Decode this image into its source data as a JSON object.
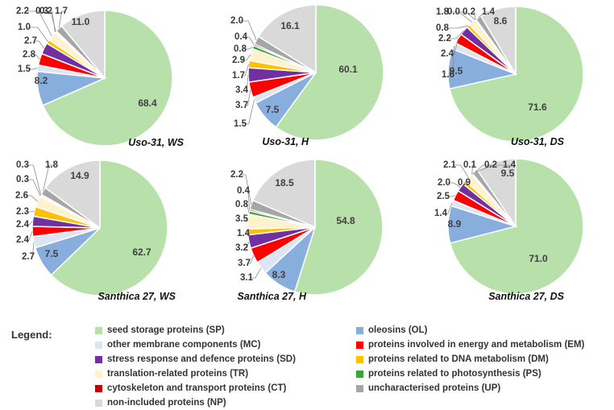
{
  "legend": {
    "heading": "Legend:",
    "items": [
      {
        "label": "seed storage proteins (SP)",
        "color": "#b7e0aa"
      },
      {
        "label": "oleosins (OL)",
        "color": "#88aedd"
      },
      {
        "label": "other membrane components (MC)",
        "color": "#dbe6f2"
      },
      {
        "label": "proteins involved in energy and metabolism (EM)",
        "color": "#ff0000"
      },
      {
        "label": "stress response and defence proteins (SD)",
        "color": "#7030a0"
      },
      {
        "label": "proteins related to DNA metabolism (DM)",
        "color": "#ffc000"
      },
      {
        "label": "translation-related proteins (TR)",
        "color": "#fff2cc"
      },
      {
        "label": "proteins related to photosynthesis (PS)",
        "color": "#3aa33a"
      },
      {
        "label": "cytoskeleton and transport proteins (CT)",
        "color": "#c00000"
      },
      {
        "label": "uncharacterised proteins (UP)",
        "color": "#a6a6a6"
      },
      {
        "label": "non-included proteins (NP)",
        "color": "#d9d9d9"
      }
    ]
  },
  "chart_data": [
    {
      "type": "pie",
      "title": "Uso-31, WS",
      "categories": [
        "SP",
        "OL",
        "MC",
        "EM",
        "SD",
        "DM",
        "TR",
        "PS",
        "CT",
        "UP",
        "NP"
      ],
      "values": [
        68.4,
        8.2,
        1.5,
        2.8,
        2.7,
        1.0,
        2.2,
        0.2,
        0.3,
        1.7,
        11.0
      ],
      "labels": [
        "68.4",
        "8.2",
        "1.5",
        "2.8",
        "2.7",
        "1.0",
        "2.2",
        "0.2",
        "0.3",
        "1.7",
        "11.0"
      ]
    },
    {
      "type": "pie",
      "title": "Uso-31, H",
      "categories": [
        "SP",
        "OL",
        "MC",
        "EM",
        "SD",
        "DM",
        "TR",
        "PS",
        "CT",
        "UP",
        "NP"
      ],
      "values": [
        60.1,
        7.5,
        1.5,
        3.7,
        3.4,
        1.7,
        2.9,
        0.8,
        0.4,
        2.0,
        16.1
      ],
      "labels": [
        "60.1",
        "7.5",
        "1.5",
        "3.7",
        "3.4",
        "1.7",
        "2.9",
        "0.8",
        "0.4",
        "2.0",
        "16.1"
      ]
    },
    {
      "type": "pie",
      "title": "Uso-31, DS",
      "categories": [
        "SP",
        "OL",
        "MC",
        "EM",
        "SD",
        "DM",
        "TR",
        "PS",
        "CT",
        "UP",
        "NP"
      ],
      "values": [
        71.6,
        9.5,
        1.6,
        2.4,
        2.2,
        0.8,
        1.8,
        0.0,
        0.2,
        1.4,
        8.6
      ],
      "labels": [
        "71.6",
        "9.5",
        "1.6",
        "2.4",
        "2.2",
        "0.8",
        "1.8",
        "0.0",
        "0.2",
        "1.4",
        "8.6"
      ]
    },
    {
      "type": "pie",
      "title": "Santhica 27, WS",
      "categories": [
        "SP",
        "OL",
        "MC",
        "EM",
        "SD",
        "DM",
        "TR",
        "PS",
        "CT",
        "UP",
        "NP"
      ],
      "values": [
        62.7,
        7.5,
        2.7,
        2.4,
        2.4,
        2.3,
        2.6,
        0.3,
        0.3,
        1.8,
        14.9
      ],
      "labels": [
        "62.7",
        "7.5",
        "2.7",
        "2.4",
        "2.4",
        "2.3",
        "2.6",
        "0.3",
        "0.3",
        "1.8",
        "14.9"
      ]
    },
    {
      "type": "pie",
      "title": "Santhica 27, H",
      "categories": [
        "SP",
        "OL",
        "MC",
        "EM",
        "SD",
        "DM",
        "TR",
        "PS",
        "CT",
        "UP",
        "NP"
      ],
      "values": [
        54.8,
        8.3,
        3.1,
        3.7,
        3.2,
        1.4,
        3.5,
        0.8,
        0.4,
        2.2,
        18.5
      ],
      "labels": [
        "54.8",
        "8.3",
        "3.1",
        "3.7",
        "3.2",
        "1.4",
        "3.5",
        "0.8",
        "0.4",
        "2.2",
        "18.5"
      ]
    },
    {
      "type": "pie",
      "title": "Santhica 27, DS",
      "categories": [
        "SP",
        "OL",
        "MC",
        "EM",
        "SD",
        "DM",
        "TR",
        "PS",
        "CT",
        "UP",
        "NP"
      ],
      "values": [
        71.0,
        8.9,
        1.4,
        2.5,
        2.0,
        0.9,
        2.1,
        0.1,
        0.2,
        1.4,
        9.5
      ],
      "labels": [
        "71.0",
        "8.9",
        "1.4",
        "2.5",
        "2.0",
        "0.9",
        "2.1",
        "0.1",
        "0.2",
        "1.4",
        "9.5"
      ]
    }
  ]
}
